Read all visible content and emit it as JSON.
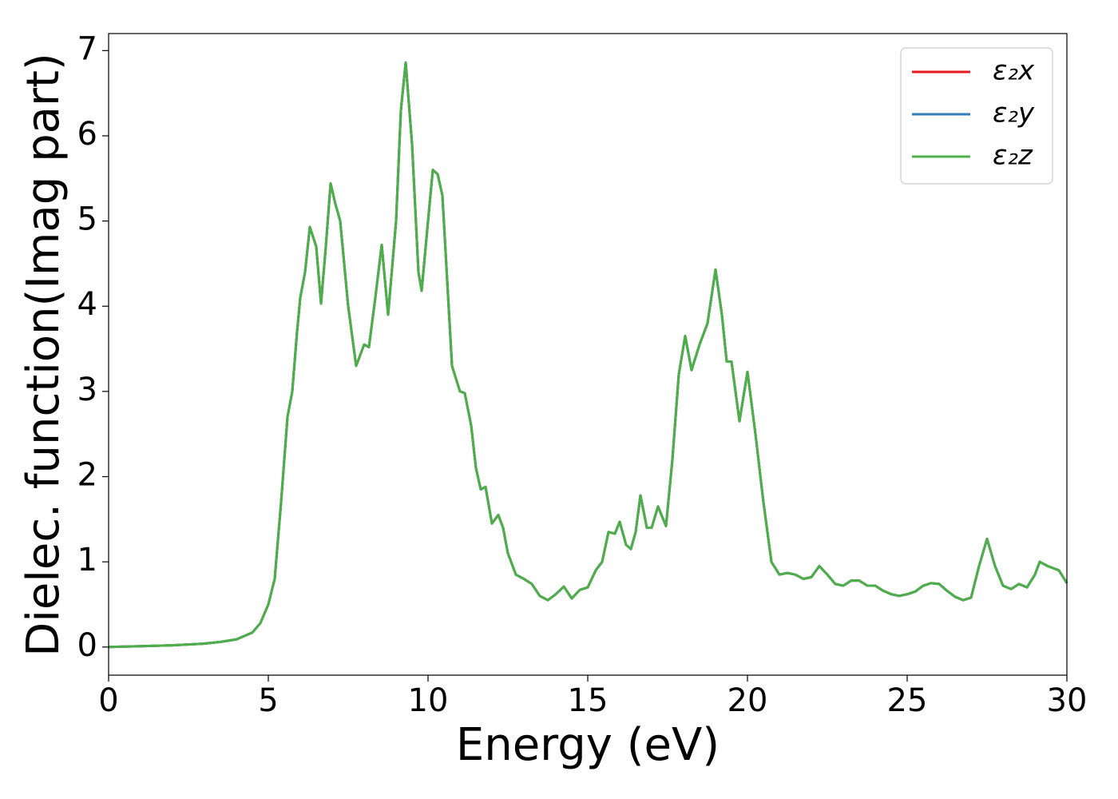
{
  "chart_data": {
    "type": "line",
    "xlabel": "Energy (eV)",
    "ylabel": "Dielec. function(Imag part)",
    "x": [
      0,
      1,
      2,
      3,
      3.5,
      4,
      4.5,
      4.75,
      5,
      5.2,
      5.4,
      5.6,
      5.75,
      5.9,
      6,
      6.15,
      6.3,
      6.5,
      6.65,
      6.8,
      6.95,
      7.1,
      7.25,
      7.5,
      7.75,
      8,
      8.15,
      8.35,
      8.55,
      8.75,
      9,
      9.15,
      9.3,
      9.5,
      9.7,
      9.8,
      10,
      10.15,
      10.3,
      10.45,
      10.6,
      10.75,
      11,
      11.15,
      11.35,
      11.5,
      11.65,
      11.8,
      12,
      12.2,
      12.35,
      12.5,
      12.75,
      13,
      13.25,
      13.5,
      13.75,
      14,
      14.25,
      14.5,
      14.75,
      15,
      15.25,
      15.45,
      15.65,
      15.85,
      16,
      16.2,
      16.35,
      16.5,
      16.65,
      16.85,
      17,
      17.2,
      17.45,
      17.65,
      17.85,
      18.05,
      18.25,
      18.5,
      18.75,
      19,
      19.2,
      19.35,
      19.5,
      19.75,
      20,
      20.25,
      20.5,
      20.75,
      21,
      21.25,
      21.5,
      21.75,
      22,
      22.25,
      22.5,
      22.75,
      23,
      23.25,
      23.5,
      23.75,
      24,
      24.25,
      24.5,
      24.75,
      25,
      25.25,
      25.5,
      25.75,
      26,
      26.25,
      26.5,
      26.75,
      27,
      27.25,
      27.5,
      27.75,
      28,
      28.25,
      28.5,
      28.75,
      29,
      29.15,
      29.4,
      29.75,
      30
    ],
    "series": [
      {
        "name": "ε₂x",
        "color": "#e41a1c",
        "values": [
          0,
          0.01,
          0.02,
          0.04,
          0.06,
          0.09,
          0.17,
          0.28,
          0.5,
          0.8,
          1.7,
          2.7,
          3.0,
          3.7,
          4.1,
          4.4,
          4.93,
          4.7,
          4.03,
          4.7,
          5.44,
          5.2,
          5.0,
          4.0,
          3.3,
          3.55,
          3.52,
          4.1,
          4.72,
          3.9,
          5.0,
          6.3,
          6.86,
          5.9,
          4.4,
          4.18,
          5.0,
          5.6,
          5.55,
          5.3,
          4.3,
          3.3,
          3.0,
          2.98,
          2.6,
          2.1,
          1.85,
          1.88,
          1.45,
          1.55,
          1.4,
          1.1,
          0.85,
          0.8,
          0.74,
          0.6,
          0.55,
          0.62,
          0.71,
          0.57,
          0.67,
          0.7,
          0.9,
          1.0,
          1.35,
          1.33,
          1.47,
          1.2,
          1.15,
          1.35,
          1.78,
          1.4,
          1.4,
          1.65,
          1.42,
          2.2,
          3.2,
          3.65,
          3.25,
          3.55,
          3.8,
          4.43,
          3.9,
          3.35,
          3.35,
          2.65,
          3.23,
          2.5,
          1.7,
          1.0,
          0.85,
          0.87,
          0.85,
          0.8,
          0.82,
          0.95,
          0.85,
          0.74,
          0.72,
          0.78,
          0.78,
          0.72,
          0.72,
          0.66,
          0.62,
          0.6,
          0.62,
          0.65,
          0.72,
          0.75,
          0.74,
          0.66,
          0.59,
          0.55,
          0.58,
          0.95,
          1.27,
          0.95,
          0.72,
          0.68,
          0.74,
          0.7,
          0.85,
          1.0,
          0.95,
          0.9,
          0.75
        ]
      },
      {
        "name": "ε₂y",
        "color": "#377eb8",
        "values": [
          0,
          0.01,
          0.02,
          0.04,
          0.06,
          0.09,
          0.17,
          0.28,
          0.5,
          0.8,
          1.7,
          2.7,
          3.0,
          3.7,
          4.1,
          4.4,
          4.93,
          4.7,
          4.03,
          4.7,
          5.44,
          5.2,
          5.0,
          4.0,
          3.3,
          3.55,
          3.52,
          4.1,
          4.72,
          3.9,
          5.0,
          6.3,
          6.86,
          5.9,
          4.4,
          4.18,
          5.0,
          5.6,
          5.55,
          5.3,
          4.3,
          3.3,
          3.0,
          2.98,
          2.6,
          2.1,
          1.85,
          1.88,
          1.45,
          1.55,
          1.4,
          1.1,
          0.85,
          0.8,
          0.74,
          0.6,
          0.55,
          0.62,
          0.71,
          0.57,
          0.67,
          0.7,
          0.9,
          1.0,
          1.35,
          1.33,
          1.47,
          1.2,
          1.15,
          1.35,
          1.78,
          1.4,
          1.4,
          1.65,
          1.42,
          2.2,
          3.2,
          3.65,
          3.25,
          3.55,
          3.8,
          4.43,
          3.9,
          3.35,
          3.35,
          2.65,
          3.23,
          2.5,
          1.7,
          1.0,
          0.85,
          0.87,
          0.85,
          0.8,
          0.82,
          0.95,
          0.85,
          0.74,
          0.72,
          0.78,
          0.78,
          0.72,
          0.72,
          0.66,
          0.62,
          0.6,
          0.62,
          0.65,
          0.72,
          0.75,
          0.74,
          0.66,
          0.59,
          0.55,
          0.58,
          0.95,
          1.27,
          0.95,
          0.72,
          0.68,
          0.74,
          0.7,
          0.85,
          1.0,
          0.95,
          0.9,
          0.75
        ]
      },
      {
        "name": "ε₂z",
        "color": "#4daf4a",
        "values": [
          0,
          0.01,
          0.02,
          0.04,
          0.06,
          0.09,
          0.17,
          0.28,
          0.5,
          0.8,
          1.7,
          2.7,
          3.0,
          3.7,
          4.1,
          4.4,
          4.93,
          4.7,
          4.03,
          4.7,
          5.44,
          5.2,
          5.0,
          4.0,
          3.3,
          3.55,
          3.52,
          4.1,
          4.72,
          3.9,
          5.0,
          6.3,
          6.86,
          5.9,
          4.4,
          4.18,
          5.0,
          5.6,
          5.55,
          5.3,
          4.3,
          3.3,
          3.0,
          2.98,
          2.6,
          2.1,
          1.85,
          1.88,
          1.45,
          1.55,
          1.4,
          1.1,
          0.85,
          0.8,
          0.74,
          0.6,
          0.55,
          0.62,
          0.71,
          0.57,
          0.67,
          0.7,
          0.9,
          1.0,
          1.35,
          1.33,
          1.47,
          1.2,
          1.15,
          1.35,
          1.78,
          1.4,
          1.4,
          1.65,
          1.42,
          2.2,
          3.2,
          3.65,
          3.25,
          3.55,
          3.8,
          4.43,
          3.9,
          3.35,
          3.35,
          2.65,
          3.23,
          2.5,
          1.7,
          1.0,
          0.85,
          0.87,
          0.85,
          0.8,
          0.82,
          0.95,
          0.85,
          0.74,
          0.72,
          0.78,
          0.78,
          0.72,
          0.72,
          0.66,
          0.62,
          0.6,
          0.62,
          0.65,
          0.72,
          0.75,
          0.74,
          0.66,
          0.59,
          0.55,
          0.58,
          0.95,
          1.27,
          0.95,
          0.72,
          0.68,
          0.74,
          0.7,
          0.85,
          1.0,
          0.95,
          0.9,
          0.75
        ]
      }
    ],
    "xlim": [
      0,
      30
    ],
    "xticks": [
      0,
      5,
      10,
      15,
      20,
      25,
      30
    ],
    "ylim": [
      -0.33,
      7.2
    ],
    "yticks": [
      0,
      1,
      2,
      3,
      4,
      5,
      6,
      7
    ],
    "legend": "upper right"
  }
}
